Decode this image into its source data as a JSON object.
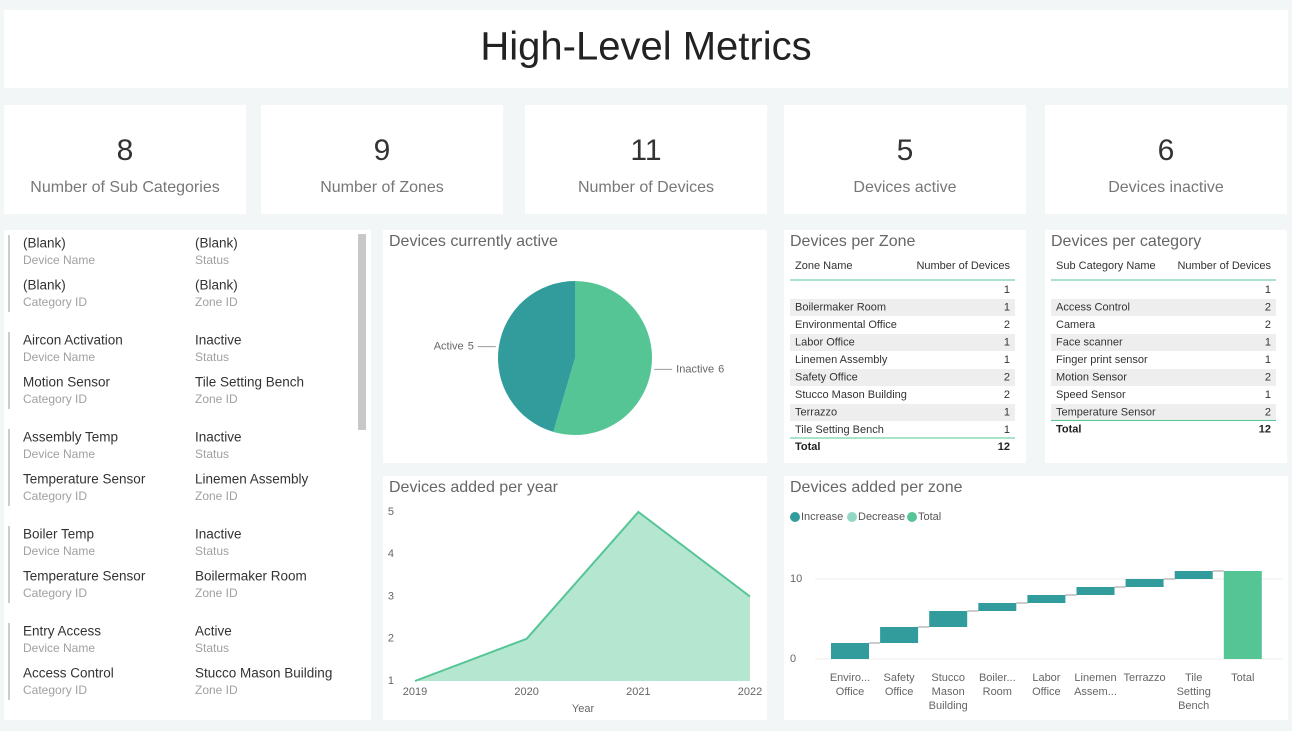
{
  "header": {
    "title": "High-Level Metrics"
  },
  "kpis": [
    {
      "value": 8,
      "label": "Number of Sub Categories"
    },
    {
      "value": 9,
      "label": "Number of Zones"
    },
    {
      "value": 11,
      "label": "Number of Devices"
    },
    {
      "value": 5,
      "label": "Devices active"
    },
    {
      "value": 6,
      "label": "Devices inactive"
    }
  ],
  "device_list": {
    "field_labels": {
      "device_name": "Device Name",
      "status": "Status",
      "category_id": "Category ID",
      "zone_id": "Zone ID"
    },
    "items": [
      {
        "device_name": "(Blank)",
        "status": "(Blank)",
        "category_id": "(Blank)",
        "zone_id": "(Blank)"
      },
      {
        "device_name": "Aircon Activation",
        "status": "Inactive",
        "category_id": "Motion Sensor",
        "zone_id": "Tile Setting Bench"
      },
      {
        "device_name": "Assembly Temp",
        "status": "Inactive",
        "category_id": "Temperature Sensor",
        "zone_id": "Linemen Assembly"
      },
      {
        "device_name": "Boiler Temp",
        "status": "Inactive",
        "category_id": "Temperature Sensor",
        "zone_id": "Boilermaker Room"
      },
      {
        "device_name": "Entry Access",
        "status": "Active",
        "category_id": "Access Control",
        "zone_id": "Stucco Mason Building"
      }
    ]
  },
  "pie": {
    "type": "pie",
    "title": "Devices currently active",
    "categories": [
      "Active",
      "Inactive"
    ],
    "values": [
      5,
      6
    ],
    "colors": [
      "#329c9c",
      "#55c596"
    ]
  },
  "area": {
    "type": "area",
    "title": "Devices added per year",
    "x_label": "Year",
    "x": [
      2019,
      2020,
      2021,
      2022
    ],
    "values": [
      1,
      2,
      5,
      3
    ],
    "xlim": [
      2019,
      2022
    ],
    "ylim": [
      1,
      5
    ],
    "yticks": [
      1,
      2,
      3,
      4,
      5
    ],
    "color": "#55c596",
    "fill": "#b5e6cf"
  },
  "zone_table": {
    "title": "Devices per Zone",
    "columns": [
      "Zone Name",
      "Number of Devices"
    ],
    "rows": [
      [
        null,
        1
      ],
      [
        "Boilermaker Room",
        1
      ],
      [
        "Environmental Office",
        2
      ],
      [
        "Labor Office",
        1
      ],
      [
        "Linemen Assembly",
        1
      ],
      [
        "Safety Office",
        2
      ],
      [
        "Stucco Mason Building",
        2
      ],
      [
        "Terrazzo",
        1
      ],
      [
        "Tile Setting Bench",
        1
      ]
    ],
    "total_label": "Total",
    "total": 12
  },
  "category_table": {
    "title": "Devices per category",
    "columns": [
      "Sub Category Name",
      "Number of Devices"
    ],
    "rows": [
      [
        null,
        1
      ],
      [
        "Access Control",
        2
      ],
      [
        "Camera",
        2
      ],
      [
        "Face scanner",
        1
      ],
      [
        "Finger print sensor",
        1
      ],
      [
        "Motion Sensor",
        2
      ],
      [
        "Speed Sensor",
        1
      ],
      [
        "Temperature Sensor",
        2
      ]
    ],
    "total_label": "Total",
    "total": 12
  },
  "waterfall": {
    "type": "waterfall",
    "title": "Devices added per zone",
    "legend": [
      {
        "name": "Increase",
        "color": "#329c9c"
      },
      {
        "name": "Decrease",
        "color": "#93d8c6"
      },
      {
        "name": "Total",
        "color": "#55c596"
      }
    ],
    "categories": [
      [
        "Enviro...",
        "Office"
      ],
      [
        "Safety",
        "Office"
      ],
      [
        "Stucco",
        "Mason",
        "Building"
      ],
      [
        "Boiler...",
        "Room"
      ],
      [
        "Labor",
        "Office"
      ],
      [
        "Linemen",
        "Assem..."
      ],
      [
        "Terrazzo"
      ],
      [
        "Tile",
        "Setting",
        "Bench"
      ]
    ],
    "values": [
      2,
      2,
      2,
      1,
      1,
      1,
      1,
      1
    ],
    "total_label": [
      "Total"
    ],
    "total": 11,
    "ylim": [
      0,
      15
    ],
    "yticks": [
      0,
      10
    ]
  }
}
